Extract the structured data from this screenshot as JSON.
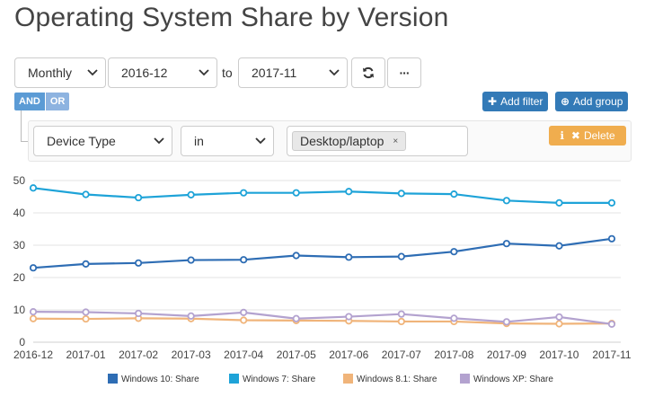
{
  "page": {
    "title": "Operating System Share by Version"
  },
  "toolbar": {
    "interval": "Monthly",
    "date_from": "2016-12",
    "to_label": "to",
    "date_to": "2017-11",
    "refresh_icon": "refresh-icon",
    "more_label": "···"
  },
  "filters": {
    "logic_and": "AND",
    "logic_or": "OR",
    "add_filter_label": "Add filter",
    "add_group_label": "Add group",
    "rule": {
      "field": "Device Type",
      "operator": "in",
      "value_tag": "Desktop/laptop",
      "tag_remove": "×",
      "delete_label": "Delete"
    }
  },
  "colors": {
    "windows10": "#2e6db4",
    "windows7": "#1ea3d8",
    "windows81": "#f0b47a",
    "windowsxp": "#b3a2cf",
    "primary_button": "#337ab7",
    "warning_button": "#f0ad4e"
  },
  "chart_data": {
    "type": "line",
    "categories": [
      "2016-12",
      "2017-01",
      "2017-02",
      "2017-03",
      "2017-04",
      "2017-05",
      "2017-06",
      "2017-07",
      "2017-08",
      "2017-09",
      "2017-10",
      "2017-11"
    ],
    "ylim": [
      0,
      50
    ],
    "yticks": [
      "0",
      "10",
      "20",
      "30",
      "40",
      "50"
    ],
    "grid": true,
    "legend_position": "bottom",
    "series": [
      {
        "name": "Windows 10: Share",
        "color": "#2e6db4",
        "values": [
          23.0,
          24.2,
          24.5,
          25.4,
          25.5,
          26.8,
          26.3,
          26.5,
          28.0,
          30.5,
          29.8,
          32.0
        ]
      },
      {
        "name": "Windows 7: Share",
        "color": "#1ea3d8",
        "values": [
          47.7,
          45.7,
          44.7,
          45.6,
          46.2,
          46.2,
          46.6,
          46.0,
          45.8,
          43.8,
          43.1,
          43.1
        ]
      },
      {
        "name": "Windows 8.1: Share",
        "color": "#f0b47a",
        "values": [
          7.3,
          7.2,
          7.4,
          7.3,
          6.8,
          6.7,
          6.6,
          6.4,
          6.4,
          5.8,
          5.7,
          5.8
        ]
      },
      {
        "name": "Windows XP: Share",
        "color": "#b3a2cf",
        "values": [
          9.4,
          9.3,
          8.9,
          8.1,
          9.2,
          7.3,
          7.9,
          8.7,
          7.4,
          6.3,
          7.8,
          5.6
        ]
      }
    ]
  }
}
